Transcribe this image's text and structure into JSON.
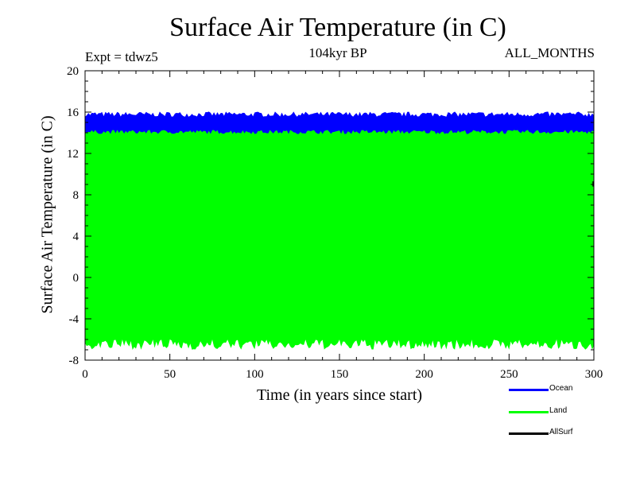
{
  "chart_data": {
    "type": "area",
    "title": "Surface Air Temperature (in C)",
    "subtitle": "104kyr BP",
    "expt": "Expt = tdwz5",
    "season": "ALL_MONTHS",
    "xlabel": "Time (in years since start)",
    "ylabel": "Surface Air Temperature (in C)",
    "xlim": [
      0,
      300
    ],
    "ylim": [
      -8,
      20
    ],
    "xticks": [
      0,
      50,
      100,
      150,
      200,
      250,
      300
    ],
    "yticks": [
      -8,
      -4,
      0,
      4,
      8,
      12,
      16,
      20
    ],
    "grid": false,
    "legend_position": "bottom-right, outside plot",
    "series": [
      {
        "name": "Ocean",
        "color": "#0000ff",
        "min_approx": 13.8,
        "max_approx": 16.0,
        "x": [
          0,
          300
        ]
      },
      {
        "name": "Land",
        "color": "#00ff00",
        "min_approx": -6.5,
        "max_approx": 14.2,
        "x": [
          0,
          300
        ]
      },
      {
        "name": "AllSurf",
        "color": "#000000",
        "x": [
          0,
          300
        ]
      }
    ]
  }
}
